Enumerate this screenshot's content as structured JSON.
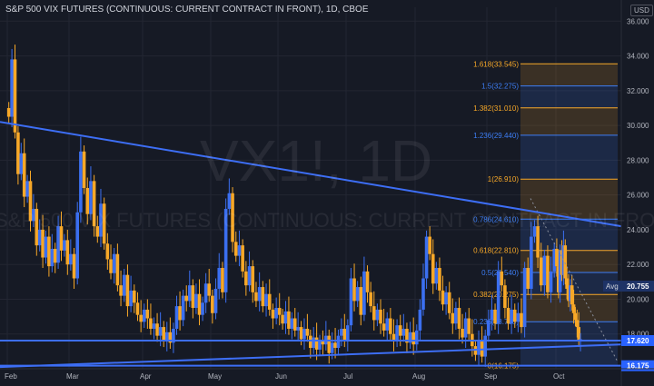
{
  "header": {
    "title": "S&P 500 VIX FUTURES (CONTINUOUS: CURRENT CONTRACT IN FRONT), 1D, CBOE",
    "currency": "USD"
  },
  "watermark": {
    "symbol": "VX1!, 1D",
    "description": "S&P 500 VIX FUTURES (CONTINUOUS: CURRENT CONTRACT IN FRONT)"
  },
  "colors": {
    "background": "#161a25",
    "up": "#3b6ff0",
    "down": "#f7a828",
    "trendline": "#3d6ef5",
    "fib_orange": "#f7a828",
    "fib_blue": "#3d7ef5"
  },
  "chart_data": {
    "type": "candlestick",
    "x_tick_labels": [
      "Feb",
      "Mar",
      "Apr",
      "May",
      "Jun",
      "Jul",
      "Aug",
      "Sep",
      "Oct"
    ],
    "y_tick_labels": [
      "36.000",
      "34.000",
      "32.000",
      "30.000",
      "28.000",
      "26.000",
      "24.000",
      "22.000",
      "20.000",
      "18.000"
    ],
    "ylim": [
      16.0,
      36.8
    ],
    "monthly_candles": [
      {
        "month": "Feb",
        "values": [
          30.5,
          33.8,
          29.6,
          27.2,
          28.4,
          25.9,
          26.8,
          24.5,
          25.2,
          23.1,
          24.0,
          22.4,
          23.6,
          21.9,
          22.9,
          22.1,
          24.2,
          22.8,
          23.4,
          22.0
        ]
      },
      {
        "month": "Mar",
        "values": [
          22.6,
          21.2,
          25.0,
          28.5,
          26.4,
          24.9,
          26.8,
          24.2,
          23.6,
          25.5,
          23.2,
          22.3,
          21.5,
          22.6,
          20.8,
          20.2,
          21.4,
          19.6,
          20.5,
          19.8,
          19.1,
          18.7
        ]
      },
      {
        "month": "Apr",
        "values": [
          19.4,
          18.9,
          18.3,
          18.6,
          17.9,
          18.4,
          17.6,
          18.1,
          17.5,
          18.3,
          19.6,
          18.8,
          20.2,
          19.9,
          20.8,
          19.5,
          20.3,
          19.1,
          19.8,
          20.9,
          20.2
        ]
      },
      {
        "month": "May",
        "values": [
          19.2,
          20.6,
          21.8,
          20.4,
          25.2,
          26.1,
          23.3,
          22.5,
          23.1,
          21.6,
          20.8,
          21.9,
          20.4,
          19.9,
          20.7,
          19.6,
          20.3,
          19.4,
          18.9,
          19.5
        ]
      },
      {
        "month": "Jun",
        "values": [
          19.1,
          18.6,
          19.3,
          18.3,
          18.9,
          18.2,
          18.4,
          17.7,
          18.3,
          17.9,
          17.2,
          17.8,
          17.1,
          17.6,
          17.4,
          17.9,
          16.9,
          17.5,
          17.2,
          17.9,
          18.3,
          17.6
        ]
      },
      {
        "month": "Jul",
        "values": [
          18.5,
          21.2,
          19.9,
          20.7,
          19.1,
          21.6,
          20.4,
          19.6,
          18.8,
          19.4,
          18.6,
          18.2,
          18.9,
          18.0,
          17.6,
          18.5,
          17.9,
          18.3,
          17.5,
          18.1,
          17.4
        ]
      },
      {
        "month": "Aug",
        "values": [
          18.2,
          19.4,
          21.2,
          23.6,
          22.6,
          20.9,
          21.8,
          20.5,
          19.7,
          20.4,
          19.2,
          18.6,
          19.5,
          18.3,
          17.8,
          18.9,
          18.0,
          17.3,
          16.8,
          17.6,
          16.7,
          17.9
        ]
      },
      {
        "month": "Sep",
        "values": [
          18.8,
          19.4,
          18.6,
          21.6,
          20.8,
          19.5,
          18.6,
          19.4,
          18.7,
          19.2,
          18.4,
          21.8,
          20.6,
          23.6,
          24.2,
          22.4,
          20.8,
          22.5,
          20.4,
          21.6,
          22.9
        ]
      },
      {
        "month": "Oct",
        "values": [
          21.9,
          20.4,
          22.8,
          21.4,
          23.1,
          21.2,
          20.6,
          19.9,
          20.8,
          19.7,
          19.2,
          18.8,
          18.4,
          17.6,
          17.7
        ]
      }
    ],
    "trendlines": [
      {
        "name": "upper",
        "from": [
          0,
          30.2
        ],
        "to": [
          225,
          24.2
        ]
      },
      {
        "name": "lower",
        "from": [
          0,
          16.1
        ],
        "to": [
          225,
          17.4
        ]
      },
      {
        "name": "support",
        "value": 17.62
      },
      {
        "name": "base",
        "value": 16.175
      }
    ],
    "fib_levels": [
      {
        "label": "1.618(33.545)",
        "value": 33.545,
        "color": "orange"
      },
      {
        "label": "1.5(32.275)",
        "value": 32.275,
        "color": "blue"
      },
      {
        "label": "1.382(31.010)",
        "value": 31.01,
        "color": "orange"
      },
      {
        "label": "1.236(29.440)",
        "value": 29.44,
        "color": "blue"
      },
      {
        "label": "1(26.910)",
        "value": 26.91,
        "color": "orange"
      },
      {
        "label": "0.786(24.610)",
        "value": 24.61,
        "color": "blue"
      },
      {
        "label": "0.618(22.810)",
        "value": 22.81,
        "color": "orange"
      },
      {
        "label": "0.5(21.540)",
        "value": 21.54,
        "color": "blue"
      },
      {
        "label": "0.382(20.275)",
        "value": 20.275,
        "color": "orange"
      },
      {
        "label": "0.236(18.705)",
        "value": 18.705,
        "color": "blue"
      },
      {
        "label": "0(16.175)",
        "value": 16.175,
        "color": "orange"
      }
    ],
    "price_labels": [
      {
        "text": "20.755",
        "value": 20.755,
        "prefix": "Avg",
        "style": "avg"
      },
      {
        "text": "17.620",
        "value": 17.62,
        "style": "line"
      },
      {
        "text": "16.175",
        "value": 16.175,
        "style": "line"
      }
    ]
  }
}
